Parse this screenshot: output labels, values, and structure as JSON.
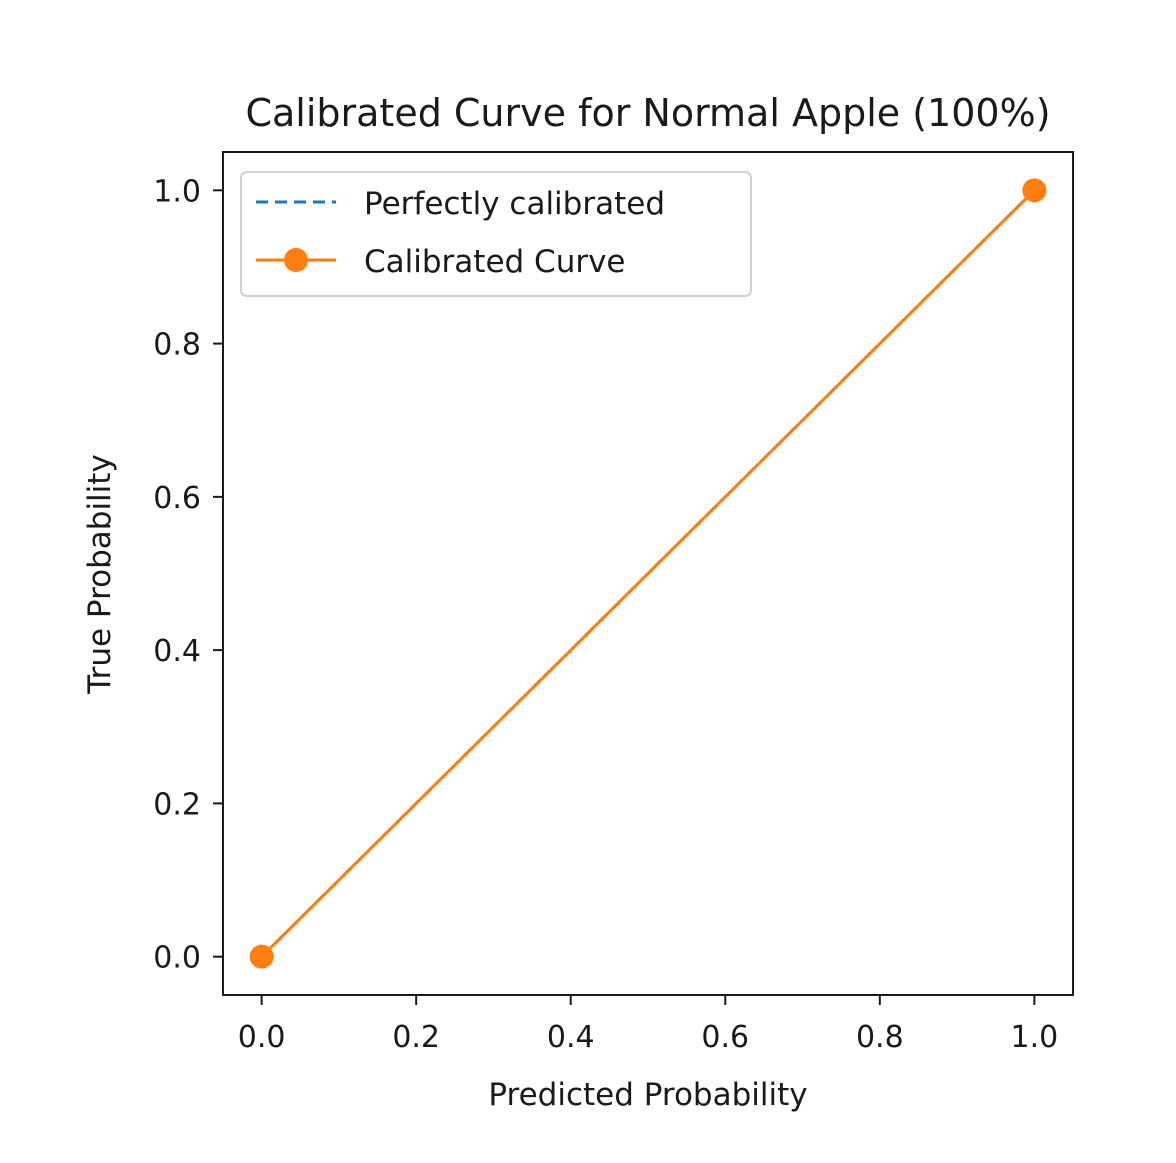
{
  "chart_data": {
    "type": "line",
    "title": "Calibrated Curve for Normal Apple (100%)",
    "xlabel": "Predicted Probability",
    "ylabel": "True Probability",
    "xlim": [
      -0.05,
      1.05
    ],
    "ylim": [
      -0.05,
      1.05
    ],
    "xticks": [
      "0.0",
      "0.2",
      "0.4",
      "0.6",
      "0.8",
      "1.0"
    ],
    "yticks": [
      "0.0",
      "0.2",
      "0.4",
      "0.6",
      "0.8",
      "1.0"
    ],
    "grid": false,
    "legend_position": "upper-left",
    "series": [
      {
        "name": "Perfectly calibrated",
        "style": "dashed",
        "markers": false,
        "color": "#1f77b4",
        "x": [
          0,
          1
        ],
        "y": [
          0,
          1
        ]
      },
      {
        "name": "Calibrated Curve",
        "style": "solid",
        "markers": true,
        "color": "#ff7f0e",
        "x": [
          0.0,
          1.0
        ],
        "y": [
          0.0,
          1.0
        ]
      }
    ]
  }
}
